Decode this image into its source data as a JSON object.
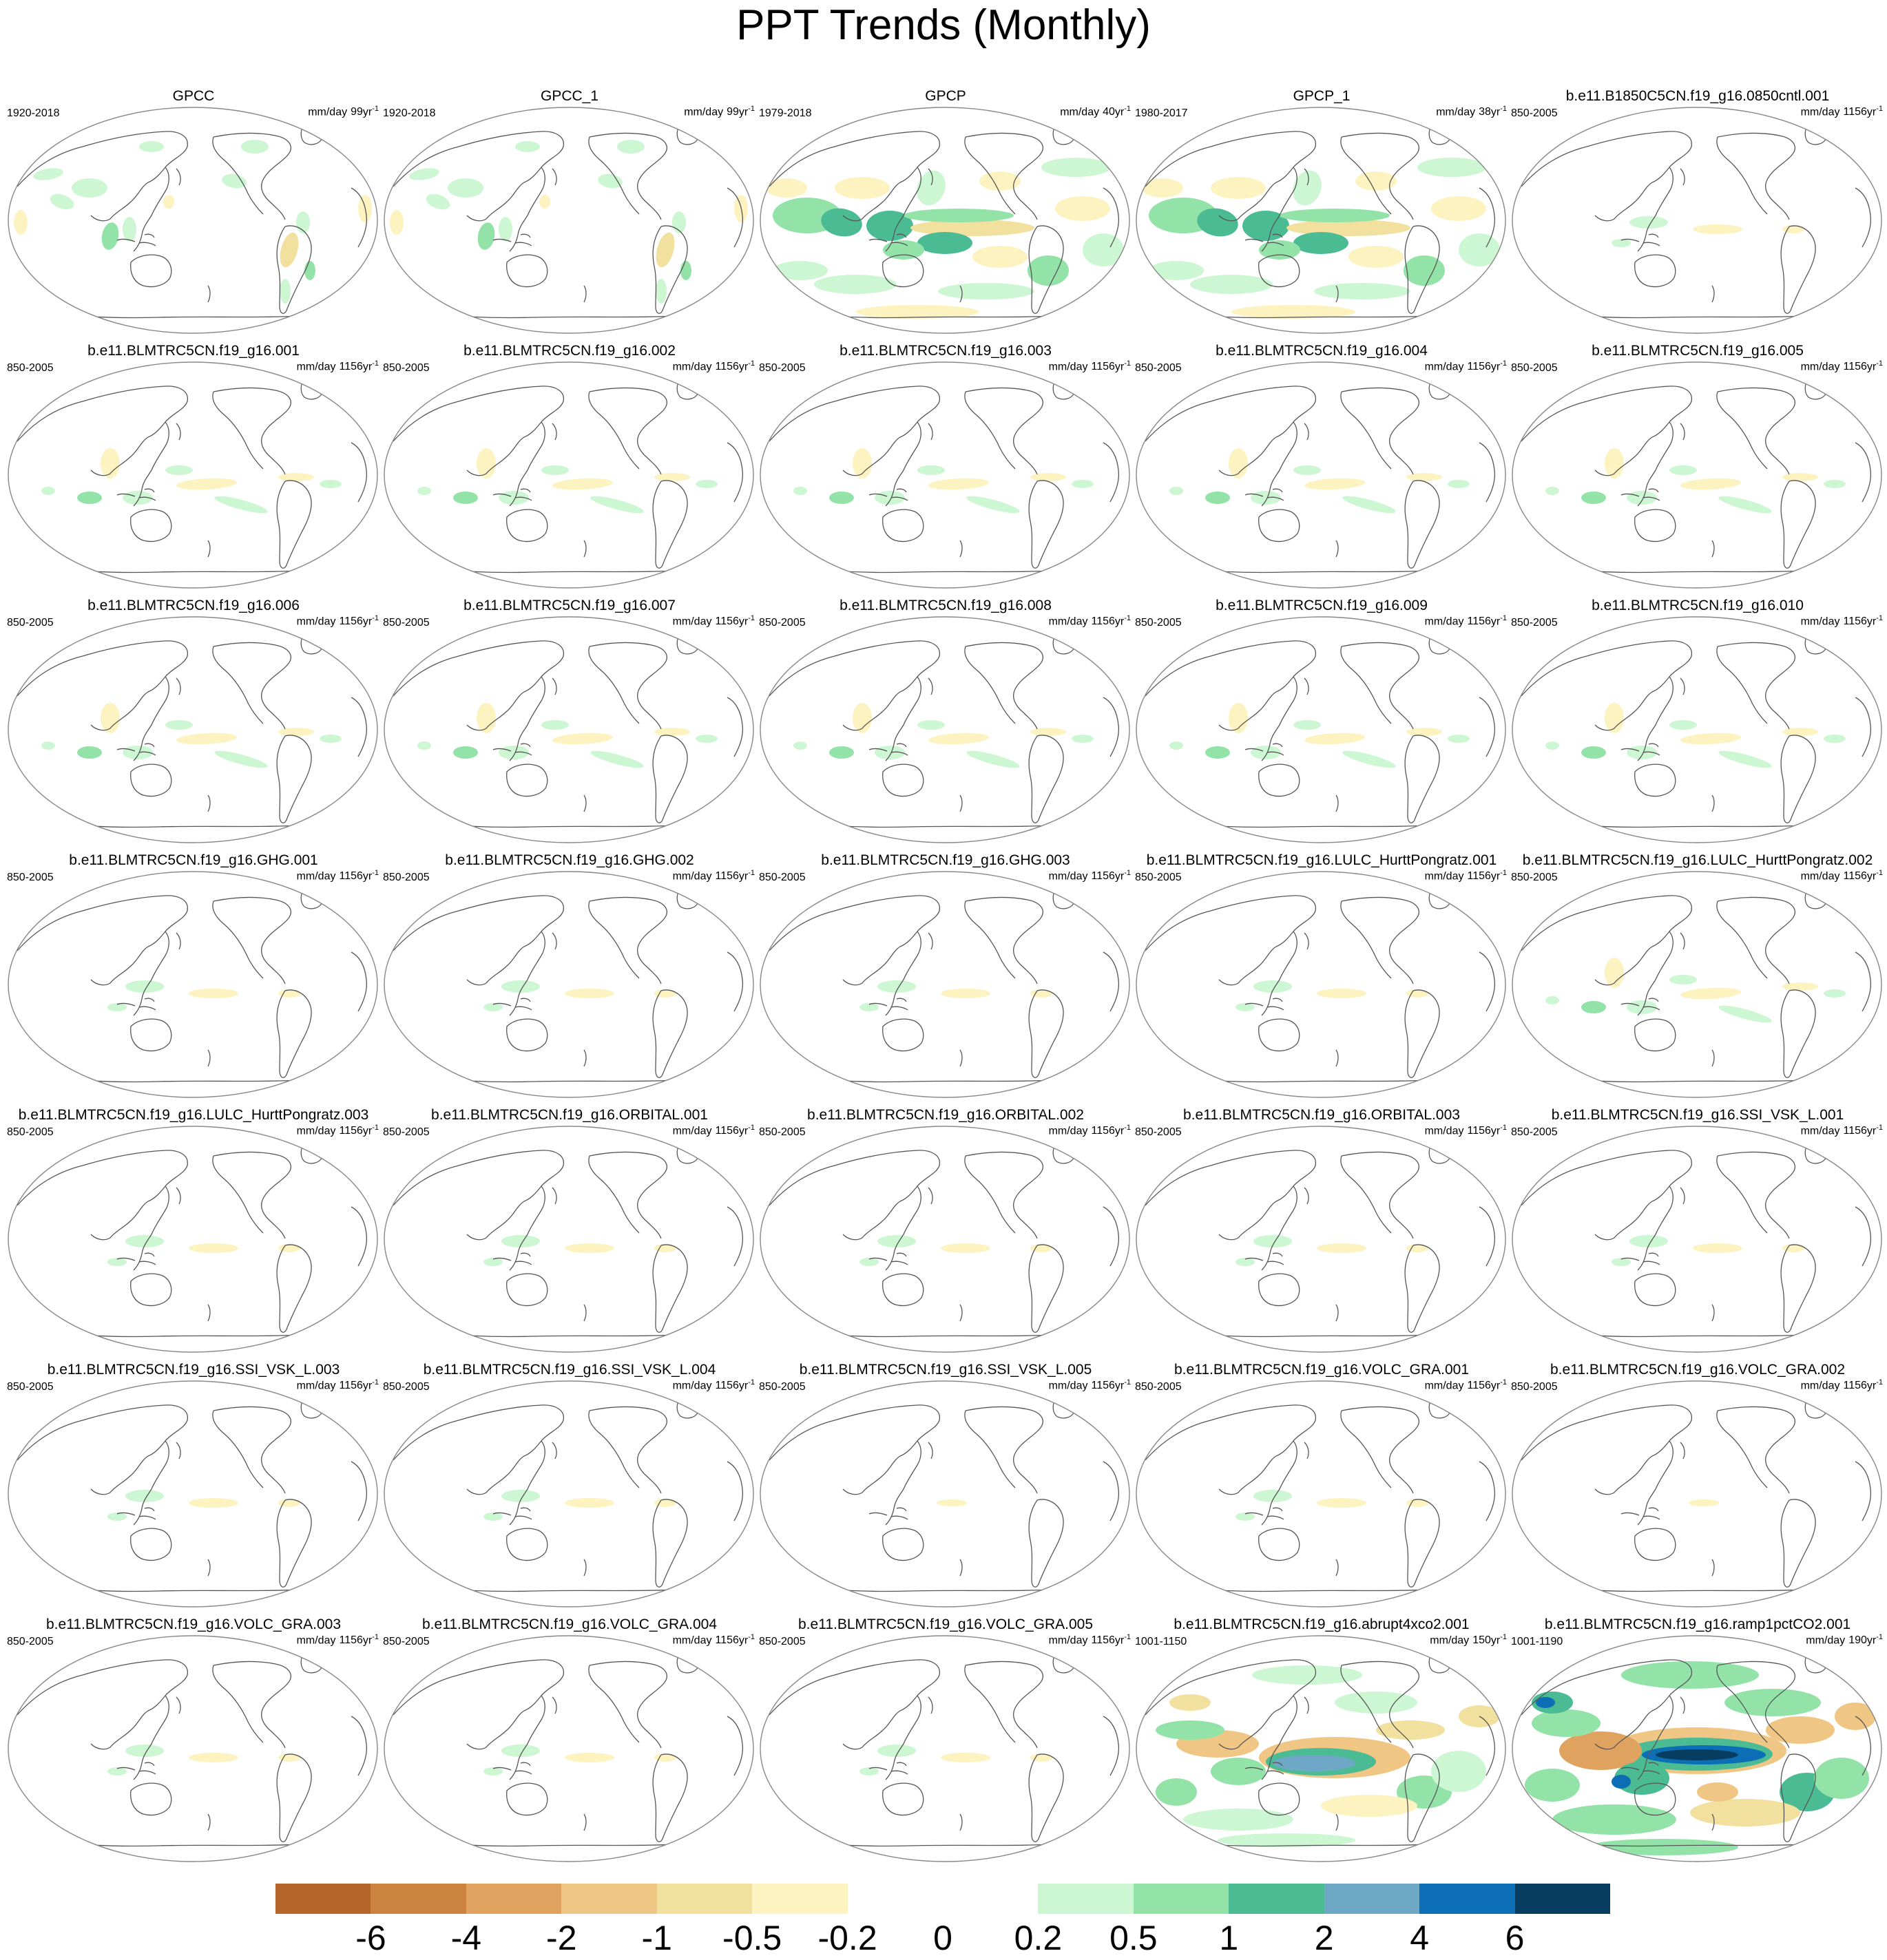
{
  "title": "PPT Trends (Monthly)",
  "units_prefix": "mm/day",
  "units_suffix": "yr",
  "units_exp": "-1",
  "colors": {
    "land": "#ffffff",
    "coast": "#555555",
    "ocean_outline": "#888888"
  },
  "colorbar": {
    "colors": [
      "#b5642a",
      "#cc8340",
      "#e0a35f",
      "#f0c685",
      "#f2e09e",
      "#fdf3c0",
      "#ffffff",
      "#ffffff",
      "#cdf7d3",
      "#93e3a9",
      "#4bbb94",
      "#6fa8c7",
      "#0c6fb5",
      "#083d62"
    ],
    "labels": [
      "-6",
      "-4",
      "-2",
      "-1",
      "-0.5",
      "-0.2",
      "0",
      "0.2",
      "0.5",
      "1",
      "2",
      "4",
      "6"
    ]
  },
  "panels": [
    {
      "title": "GPCC",
      "period": "1920-2018",
      "span": "99",
      "type": "obs_gpcc"
    },
    {
      "title": "GPCC_1",
      "period": "1920-2018",
      "span": "99",
      "type": "obs_gpcc"
    },
    {
      "title": "GPCP",
      "period": "1979-2018",
      "span": "40",
      "type": "obs_gpcp"
    },
    {
      "title": "GPCP_1",
      "period": "1980-2017",
      "span": "38",
      "type": "obs_gpcp"
    },
    {
      "title": "b.e11.B1850C5CN.f19_g16.0850cntl.001",
      "period": "850-2005",
      "span": "1156",
      "type": "weak"
    },
    {
      "title": "b.e11.BLMTRC5CN.f19_g16.001",
      "period": "850-2005",
      "span": "1156",
      "type": "model"
    },
    {
      "title": "b.e11.BLMTRC5CN.f19_g16.002",
      "period": "850-2005",
      "span": "1156",
      "type": "model"
    },
    {
      "title": "b.e11.BLMTRC5CN.f19_g16.003",
      "period": "850-2005",
      "span": "1156",
      "type": "model"
    },
    {
      "title": "b.e11.BLMTRC5CN.f19_g16.004",
      "period": "850-2005",
      "span": "1156",
      "type": "model"
    },
    {
      "title": "b.e11.BLMTRC5CN.f19_g16.005",
      "period": "850-2005",
      "span": "1156",
      "type": "model"
    },
    {
      "title": "b.e11.BLMTRC5CN.f19_g16.006",
      "period": "850-2005",
      "span": "1156",
      "type": "model"
    },
    {
      "title": "b.e11.BLMTRC5CN.f19_g16.007",
      "period": "850-2005",
      "span": "1156",
      "type": "model"
    },
    {
      "title": "b.e11.BLMTRC5CN.f19_g16.008",
      "period": "850-2005",
      "span": "1156",
      "type": "model"
    },
    {
      "title": "b.e11.BLMTRC5CN.f19_g16.009",
      "period": "850-2005",
      "span": "1156",
      "type": "model"
    },
    {
      "title": "b.e11.BLMTRC5CN.f19_g16.010",
      "period": "850-2005",
      "span": "1156",
      "type": "model"
    },
    {
      "title": "b.e11.BLMTRC5CN.f19_g16.GHG.001",
      "period": "850-2005",
      "span": "1156",
      "type": "weak"
    },
    {
      "title": "b.e11.BLMTRC5CN.f19_g16.GHG.002",
      "period": "850-2005",
      "span": "1156",
      "type": "weak"
    },
    {
      "title": "b.e11.BLMTRC5CN.f19_g16.GHG.003",
      "period": "850-2005",
      "span": "1156",
      "type": "weak"
    },
    {
      "title": "b.e11.BLMTRC5CN.f19_g16.LULC_HurttPongratz.001",
      "period": "850-2005",
      "span": "1156",
      "type": "weak"
    },
    {
      "title": "b.e11.BLMTRC5CN.f19_g16.LULC_HurttPongratz.002",
      "period": "850-2005",
      "span": "1156",
      "type": "model"
    },
    {
      "title": "b.e11.BLMTRC5CN.f19_g16.LULC_HurttPongratz.003",
      "period": "850-2005",
      "span": "1156",
      "type": "weak"
    },
    {
      "title": "b.e11.BLMTRC5CN.f19_g16.ORBITAL.001",
      "period": "850-2005",
      "span": "1156",
      "type": "weak"
    },
    {
      "title": "b.e11.BLMTRC5CN.f19_g16.ORBITAL.002",
      "period": "850-2005",
      "span": "1156",
      "type": "weak"
    },
    {
      "title": "b.e11.BLMTRC5CN.f19_g16.ORBITAL.003",
      "period": "850-2005",
      "span": "1156",
      "type": "weak"
    },
    {
      "title": "b.e11.BLMTRC5CN.f19_g16.SSI_VSK_L.001",
      "period": "850-2005",
      "span": "1156",
      "type": "weak"
    },
    {
      "title": "b.e11.BLMTRC5CN.f19_g16.SSI_VSK_L.003",
      "period": "850-2005",
      "span": "1156",
      "type": "weak"
    },
    {
      "title": "b.e11.BLMTRC5CN.f19_g16.SSI_VSK_L.004",
      "period": "850-2005",
      "span": "1156",
      "type": "weak"
    },
    {
      "title": "b.e11.BLMTRC5CN.f19_g16.SSI_VSK_L.005",
      "period": "850-2005",
      "span": "1156",
      "type": "empty"
    },
    {
      "title": "b.e11.BLMTRC5CN.f19_g16.VOLC_GRA.001",
      "period": "850-2005",
      "span": "1156",
      "type": "weak"
    },
    {
      "title": "b.e11.BLMTRC5CN.f19_g16.VOLC_GRA.002",
      "period": "850-2005",
      "span": "1156",
      "type": "empty"
    },
    {
      "title": "b.e11.BLMTRC5CN.f19_g16.VOLC_GRA.003",
      "period": "850-2005",
      "span": "1156",
      "type": "weak"
    },
    {
      "title": "b.e11.BLMTRC5CN.f19_g16.VOLC_GRA.004",
      "period": "850-2005",
      "span": "1156",
      "type": "weak"
    },
    {
      "title": "b.e11.BLMTRC5CN.f19_g16.VOLC_GRA.005",
      "period": "850-2005",
      "span": "1156",
      "type": "weak"
    },
    {
      "title": "b.e11.BLMTRC5CN.f19_g16.abrupt4xco2.001",
      "period": "1001-1150",
      "span": "150",
      "type": "strong"
    },
    {
      "title": "b.e11.BLMTRC5CN.f19_g16.ramp1pctCO2.001",
      "period": "1001-1190",
      "span": "190",
      "type": "strong2"
    }
  ]
}
